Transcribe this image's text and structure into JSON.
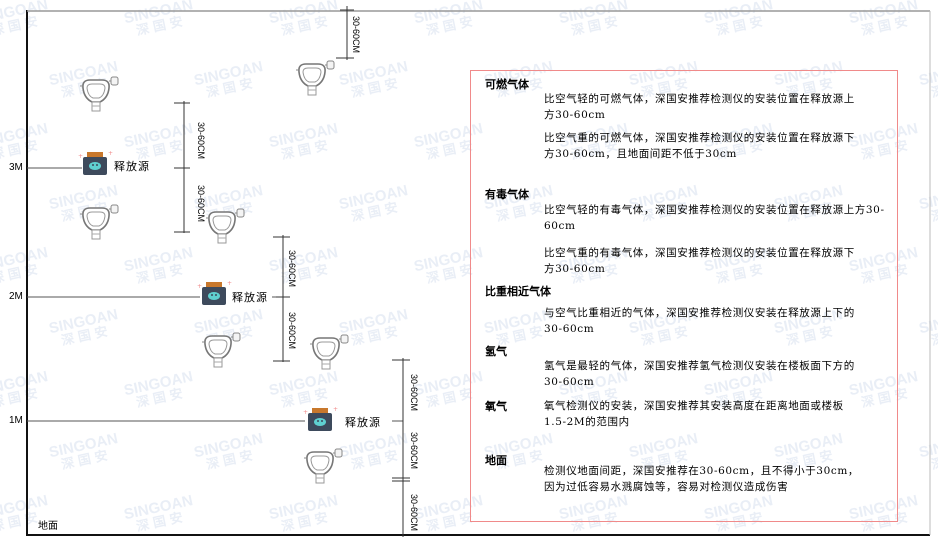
{
  "levels": {
    "l3": "3M",
    "l2": "2M",
    "l1": "1M"
  },
  "floor_label": "地面",
  "source_label": "释放源",
  "dimension_label": "30-60CM",
  "watermark": {
    "brand": "SINGOAN",
    "cn": "深国安"
  },
  "colors": {
    "panel_border": "#f08a8a",
    "source_body": "#3d4a5c",
    "source_cap": "#c8782c",
    "source_face": "#5fd0d0"
  },
  "panel": {
    "sections": [
      {
        "title": "可燃气体",
        "paragraphs": [
          "比空气轻的可燃气体，深国安推荐检测仪的安装位置在释放源上方30-60cm",
          "比空气重的可燃气体，深国安推荐检测仪的安装位置在释放源下方30-60cm，且地面间距不低于30cm"
        ]
      },
      {
        "title": "有毒气体",
        "paragraphs": [
          "比空气轻的有毒气体，深国安推荐检测仪的安装位置在释放源上方30-60cm",
          "比空气重的有毒气体，深国安推荐检测仪的安装位置在释放源下方30-60cm"
        ]
      },
      {
        "title": "比重相近气体",
        "paragraphs": [
          "与空气比重相近的气体，深国安推荐检测仪安装在释放源上下的30-60cm"
        ]
      },
      {
        "title": "氢气",
        "paragraphs": [
          "氢气是最轻的气体，深国安推荐氢气检测仪安装在楼板面下方的30-60cm"
        ]
      },
      {
        "title": "氧气",
        "paragraphs": [
          "氧气检测仪的安装，深国安推荐其安装高度在距离地面或楼板1.5-2M的范围内"
        ]
      },
      {
        "title": "地面",
        "paragraphs": [
          "检测仪地面间距，深国安推荐在30-60cm，且不得小于30cm，因为过低容易水溅腐蚀等，容易对检测仪造成伤害"
        ]
      }
    ]
  }
}
